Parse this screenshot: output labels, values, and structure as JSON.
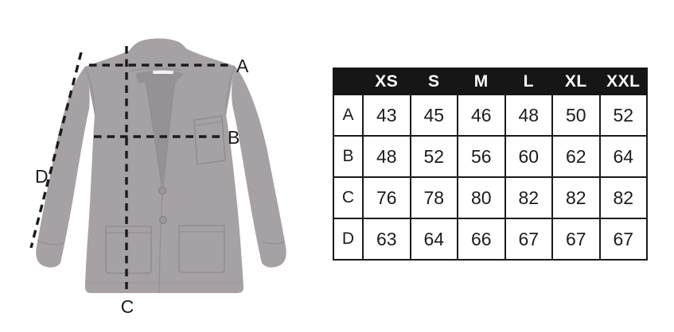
{
  "chart_data": {
    "type": "table",
    "title": "",
    "corner_label": "",
    "columns": [
      "XS",
      "S",
      "M",
      "L",
      "XL",
      "XXL"
    ],
    "row_labels": [
      "A",
      "B",
      "C",
      "D"
    ],
    "values": [
      [
        43,
        45,
        46,
        48,
        50,
        52
      ],
      [
        48,
        52,
        56,
        60,
        62,
        64
      ],
      [
        76,
        78,
        80,
        82,
        82,
        82
      ],
      [
        63,
        64,
        66,
        67,
        67,
        67
      ]
    ]
  },
  "colors": {
    "header_bg": "#161616",
    "header_text": "#ffffff",
    "table_border": "#1a1a1a",
    "cell_text": "#1c1c1c",
    "measure_line": "#1b1b1b",
    "jacket_fill": "#a6a1a4",
    "jacket_shadow": "#969196",
    "jacket_seam": "#8e898d",
    "care_tag": "#f5f4f2",
    "background": "#ffffff"
  }
}
